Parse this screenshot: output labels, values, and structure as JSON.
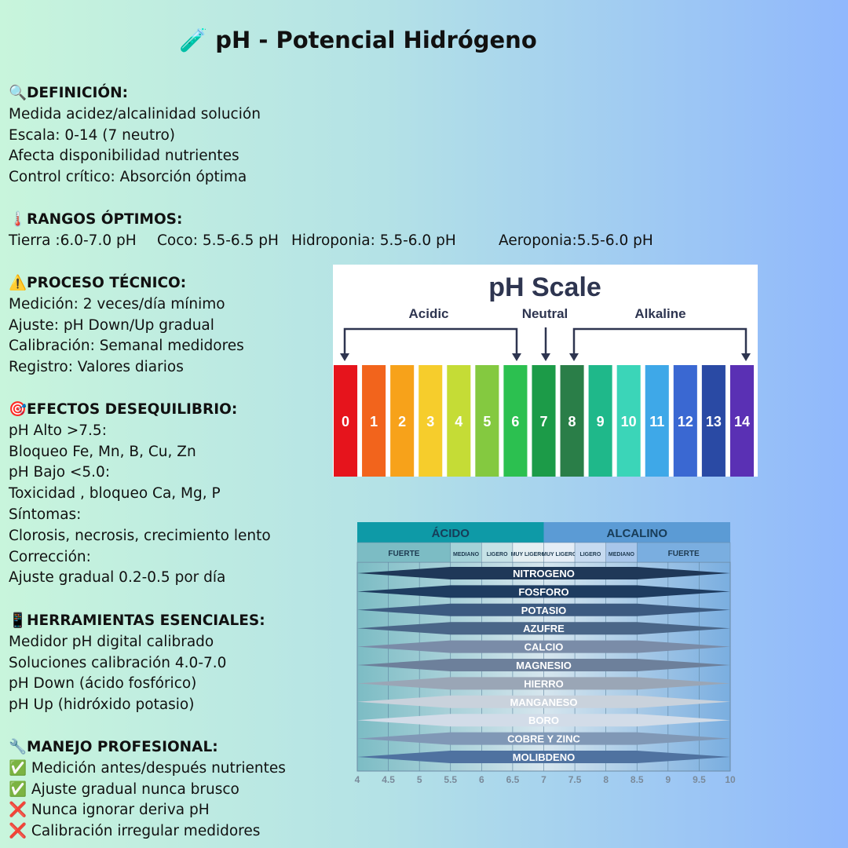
{
  "header": {
    "title": "🧪 pH - Potencial Hidrógeno"
  },
  "sections": [
    {
      "heading": "🔍DEFINICIÓN:",
      "lines": [
        "Medida acidez/alcalinidad solución",
        "Escala: 0-14 (7 neutro)",
        "Afecta disponibilidad nutrientes",
        "Control crítico: Absorción óptima"
      ]
    },
    {
      "heading": "🌡️RANGOS ÓPTIMOS:",
      "items": [
        "Tierra :6.0-7.0 pH",
        "Coco: 5.5-6.5 pH",
        "Hidroponia: 5.5-6.0 pH",
        "Aeroponia:5.5-6.0 pH"
      ]
    },
    {
      "heading": "⚠️PROCESO TÉCNICO:",
      "lines": [
        "Medición: 2 veces/día mínimo",
        "Ajuste: pH Down/Up gradual",
        "Calibración: Semanal medidores",
        "Registro: Valores diarios"
      ]
    },
    {
      "heading": "🎯EFECTOS DESEQUILIBRIO:",
      "lines": [
        "pH Alto >7.5:",
        "Bloqueo Fe, Mn, B, Cu, Zn",
        "pH Bajo <5.0:",
        "Toxicidad , bloqueo Ca, Mg, P",
        "Síntomas:",
        "Clorosis, necrosis, crecimiento lento",
        "Corrección:",
        "Ajuste gradual 0.2-0.5 por día"
      ]
    },
    {
      "heading": "📱HERRAMIENTAS ESENCIALES:",
      "lines": [
        "Medidor pH digital calibrado",
        "Soluciones calibración 4.0-7.0",
        "pH Down (ácido fosfórico)",
        "pH Up (hidróxido potasio)"
      ]
    },
    {
      "heading": "🔧MANEJO PROFESIONAL:",
      "lines": [
        "✅ Medición antes/después nutrientes",
        "✅ Ajuste gradual nunca brusco",
        "❌ Nunca ignorar deriva pH",
        "❌ Calibración irregular medidores"
      ]
    }
  ],
  "ph_scale": {
    "title": "pH Scale",
    "labels": [
      "Acidic",
      "Neutral",
      "Alkaline"
    ],
    "levels": [
      "0",
      "1",
      "2",
      "3",
      "4",
      "5",
      "6",
      "7",
      "8",
      "9",
      "10",
      "11",
      "12",
      "13",
      "14"
    ]
  },
  "nutrient_chart": {
    "groups": [
      "ÁCIDO",
      "ALCALINO"
    ],
    "subgroups": [
      "FUERTE",
      "MEDIANO",
      "LIGERO",
      "MUY LIGERO",
      "MUY LIGERO",
      "LIGERO",
      "MEDIANO",
      "FUERTE"
    ],
    "nutrients": [
      "NITROGENO",
      "FOSFORO",
      "POTASIO",
      "AZUFRE",
      "CALCIO",
      "MAGNESIO",
      "HIERRO",
      "MANGANESO",
      "BORO",
      "COBRE Y ZINC",
      "MOLIBDENO"
    ],
    "axis": [
      "4",
      "4.5",
      "5",
      "5.5",
      "6",
      "6.5",
      "7",
      "7.5",
      "8",
      "8.5",
      "9",
      "9.5",
      "10"
    ]
  }
}
